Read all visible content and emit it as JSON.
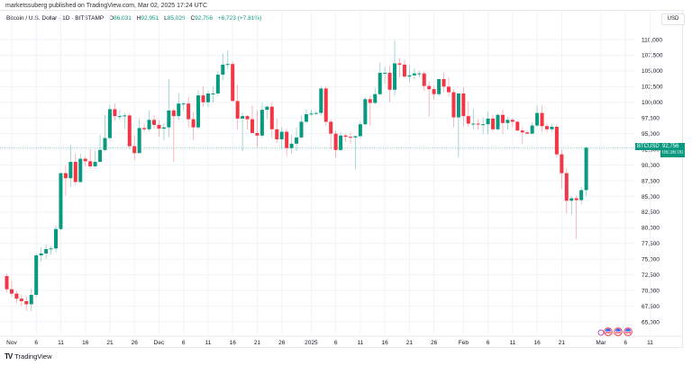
{
  "header": {
    "published": "marketssuberg published on TradingView.com, Mar 02, 2025 17:24 UTC"
  },
  "legend": {
    "symbol": "Bitcoin / U.S. Dollar · 1D · BITSTAMP",
    "o_label": "O",
    "o_value": "86,031",
    "h_label": "H",
    "h_value": "92,951",
    "l_label": "L",
    "l_value": "85,029",
    "c_label": "C",
    "c_value": "92,756",
    "change": "+6,723 (+7.81%)"
  },
  "currency": "USD",
  "price_tag": {
    "symbol": "BTCUSD",
    "price": "92,756",
    "countdown": "06:36:00"
  },
  "footer": {
    "brand": "TradingView"
  },
  "colors": {
    "up": "#089981",
    "down": "#f23645",
    "grid": "#f0f3fa",
    "last_price_line": "#089981"
  },
  "chart_data": {
    "type": "candlestick",
    "title": "Bitcoin / U.S. Dollar · 1D · BITSTAMP",
    "xlabel": "",
    "ylabel": "USD",
    "ylim": [
      63000,
      112000
    ],
    "y_ticks": [
      "110,000",
      "107,500",
      "105,000",
      "102,500",
      "100,000",
      "97,500",
      "95,000",
      "92,500",
      "90,000",
      "87,500",
      "85,000",
      "82,500",
      "80,000",
      "77,500",
      "75,000",
      "72,500",
      "70,000",
      "67,500",
      "65,000"
    ],
    "x_ticks": [
      {
        "label": "Nov",
        "day": 0
      },
      {
        "label": "6",
        "day": 5
      },
      {
        "label": "11",
        "day": 10
      },
      {
        "label": "16",
        "day": 15
      },
      {
        "label": "21",
        "day": 20
      },
      {
        "label": "26",
        "day": 25
      },
      {
        "label": "Dec",
        "day": 30
      },
      {
        "label": "6",
        "day": 35
      },
      {
        "label": "11",
        "day": 40
      },
      {
        "label": "16",
        "day": 45
      },
      {
        "label": "21",
        "day": 50
      },
      {
        "label": "26",
        "day": 55
      },
      {
        "label": "2025",
        "day": 61
      },
      {
        "label": "6",
        "day": 66
      },
      {
        "label": "11",
        "day": 71
      },
      {
        "label": "16",
        "day": 76
      },
      {
        "label": "21",
        "day": 81
      },
      {
        "label": "26",
        "day": 86
      },
      {
        "label": "Feb",
        "day": 92
      },
      {
        "label": "6",
        "day": 97
      },
      {
        "label": "11",
        "day": 102
      },
      {
        "label": "16",
        "day": 107
      },
      {
        "label": "21",
        "day": 112
      },
      {
        "label": "Mar",
        "day": 120
      },
      {
        "label": "6",
        "day": 125
      },
      {
        "label": "11",
        "day": 130
      }
    ],
    "last_price": 92756,
    "start_date": "2024-10-31",
    "ohlc": [
      [
        72300,
        72700,
        69700,
        70200
      ],
      [
        70200,
        71500,
        69000,
        69500
      ],
      [
        69500,
        69900,
        68000,
        68700
      ],
      [
        68700,
        69400,
        67500,
        68300
      ],
      [
        68300,
        69000,
        66800,
        67800
      ],
      [
        67800,
        70300,
        66700,
        69300
      ],
      [
        69300,
        75900,
        69000,
        75600
      ],
      [
        75600,
        76900,
        74600,
        75900
      ],
      [
        75900,
        77400,
        75100,
        76600
      ],
      [
        76600,
        77100,
        75700,
        76700
      ],
      [
        76700,
        80300,
        76100,
        79800
      ],
      [
        79800,
        88800,
        79600,
        88700
      ],
      [
        88700,
        89900,
        85100,
        87900
      ],
      [
        87900,
        93200,
        86500,
        90500
      ],
      [
        90500,
        91800,
        86800,
        87300
      ],
      [
        87300,
        91800,
        87100,
        91000
      ],
      [
        91000,
        91300,
        89800,
        90600
      ],
      [
        90600,
        92500,
        89500,
        89800
      ],
      [
        89800,
        92200,
        89500,
        90500
      ],
      [
        90500,
        94800,
        90400,
        92400
      ],
      [
        92400,
        98000,
        92100,
        94300
      ],
      [
        94300,
        99600,
        94000,
        98900
      ],
      [
        98900,
        99800,
        97100,
        97800
      ],
      [
        97800,
        98800,
        97200,
        97800
      ],
      [
        97800,
        98300,
        95800,
        97900
      ],
      [
        97900,
        98200,
        92600,
        93000
      ],
      [
        93000,
        94700,
        90800,
        91900
      ],
      [
        91900,
        97300,
        91800,
        95900
      ],
      [
        95900,
        96600,
        95300,
        95700
      ],
      [
        95700,
        98700,
        95400,
        97200
      ],
      [
        97200,
        97900,
        95800,
        96400
      ],
      [
        96400,
        97200,
        94500,
        95800
      ],
      [
        95800,
        96600,
        94000,
        96000
      ],
      [
        96000,
        103700,
        94400,
        98700
      ],
      [
        98700,
        99000,
        90500,
        97800
      ],
      [
        97800,
        101500,
        97200,
        99800
      ],
      [
        99800,
        100000,
        98700,
        99800
      ],
      [
        99800,
        100800,
        96000,
        97300
      ],
      [
        97300,
        98400,
        94000,
        96000
      ],
      [
        96000,
        101900,
        95700,
        101100
      ],
      [
        101100,
        102500,
        99300,
        100000
      ],
      [
        100000,
        101800,
        99300,
        101400
      ],
      [
        101400,
        102500,
        100000,
        101400
      ],
      [
        101400,
        105000,
        101000,
        104400
      ],
      [
        104400,
        107800,
        103500,
        106000
      ],
      [
        106000,
        108300,
        105300,
        106100
      ],
      [
        106100,
        106500,
        100200,
        100200
      ],
      [
        100200,
        102800,
        95600,
        97400
      ],
      [
        97400,
        98400,
        92200,
        97800
      ],
      [
        97800,
        98000,
        95700,
        97300
      ],
      [
        97300,
        99500,
        96500,
        95100
      ],
      [
        95100,
        98700,
        92900,
        94700
      ],
      [
        94700,
        99900,
        94400,
        98800
      ],
      [
        98800,
        99500,
        97300,
        99300
      ],
      [
        99300,
        99900,
        94300,
        95700
      ],
      [
        95700,
        97400,
        93500,
        94100
      ],
      [
        94100,
        96000,
        92600,
        95300
      ],
      [
        95300,
        95800,
        91400,
        92700
      ],
      [
        92700,
        94800,
        91800,
        93400
      ],
      [
        93400,
        96000,
        92200,
        94400
      ],
      [
        94400,
        97900,
        94200,
        96900
      ],
      [
        96900,
        98900,
        96600,
        98100
      ],
      [
        98100,
        98800,
        97800,
        98200
      ],
      [
        98200,
        98600,
        98000,
        98300
      ],
      [
        98300,
        102500,
        97900,
        102200
      ],
      [
        102200,
        102600,
        96200,
        96900
      ],
      [
        96900,
        97300,
        92500,
        95000
      ],
      [
        95000,
        95500,
        91200,
        92400
      ],
      [
        92400,
        95300,
        92200,
        94700
      ],
      [
        94700,
        95000,
        93700,
        94500
      ],
      [
        94500,
        95200,
        93400,
        94400
      ],
      [
        94400,
        94600,
        89300,
        94600
      ],
      [
        94600,
        97000,
        94300,
        96500
      ],
      [
        96500,
        100800,
        96300,
        100500
      ],
      [
        100500,
        101000,
        96300,
        99900
      ],
      [
        99900,
        102300,
        99700,
        101300
      ],
      [
        101300,
        106300,
        101100,
        104700
      ],
      [
        104700,
        105600,
        103000,
        104700
      ],
      [
        104700,
        105800,
        100000,
        102000
      ],
      [
        102000,
        109900,
        101000,
        106200
      ],
      [
        106200,
        107000,
        104000,
        106000
      ],
      [
        106000,
        106800,
        103900,
        104100
      ],
      [
        104100,
        106000,
        103200,
        104300
      ],
      [
        104300,
        105400,
        103600,
        104600
      ],
      [
        104600,
        105000,
        104000,
        104600
      ],
      [
        104600,
        104900,
        101800,
        102600
      ],
      [
        102600,
        103300,
        97700,
        102100
      ],
      [
        102100,
        102700,
        100400,
        101300
      ],
      [
        101300,
        103300,
        101000,
        103700
      ],
      [
        103700,
        104700,
        101600,
        102500
      ],
      [
        102500,
        104000,
        100900,
        101600
      ],
      [
        101600,
        102100,
        96000,
        97600
      ],
      [
        97600,
        101500,
        91200,
        101400
      ],
      [
        101400,
        102400,
        96200,
        97800
      ],
      [
        97800,
        100100,
        96100,
        96600
      ],
      [
        96600,
        99000,
        95700,
        96600
      ],
      [
        96600,
        97300,
        95600,
        96500
      ],
      [
        96500,
        97500,
        95000,
        96500
      ],
      [
        96500,
        98500,
        94900,
        97400
      ],
      [
        97400,
        98000,
        95300,
        95700
      ],
      [
        95700,
        98200,
        95500,
        98000
      ],
      [
        98000,
        98800,
        95000,
        96700
      ],
      [
        96700,
        97700,
        95600,
        97200
      ],
      [
        97200,
        97500,
        96000,
        96900
      ],
      [
        96900,
        97000,
        95800,
        95500
      ],
      [
        95500,
        96000,
        93400,
        95200
      ],
      [
        95200,
        95500,
        94900,
        95000
      ],
      [
        95000,
        96800,
        94900,
        96300
      ],
      [
        96300,
        99500,
        96000,
        98300
      ],
      [
        98300,
        99500,
        95300,
        96200
      ],
      [
        96200,
        96600,
        95200,
        95700
      ],
      [
        95700,
        96500,
        95300,
        96100
      ],
      [
        96100,
        96500,
        91200,
        91700
      ],
      [
        91700,
        92500,
        86200,
        88700
      ],
      [
        88700,
        89500,
        82300,
        84300
      ],
      [
        84300,
        85000,
        82100,
        84700
      ],
      [
        84700,
        85100,
        78200,
        84400
      ],
      [
        84400,
        86500,
        83700,
        86000
      ],
      [
        86000,
        92951,
        85029,
        92756
      ]
    ]
  }
}
